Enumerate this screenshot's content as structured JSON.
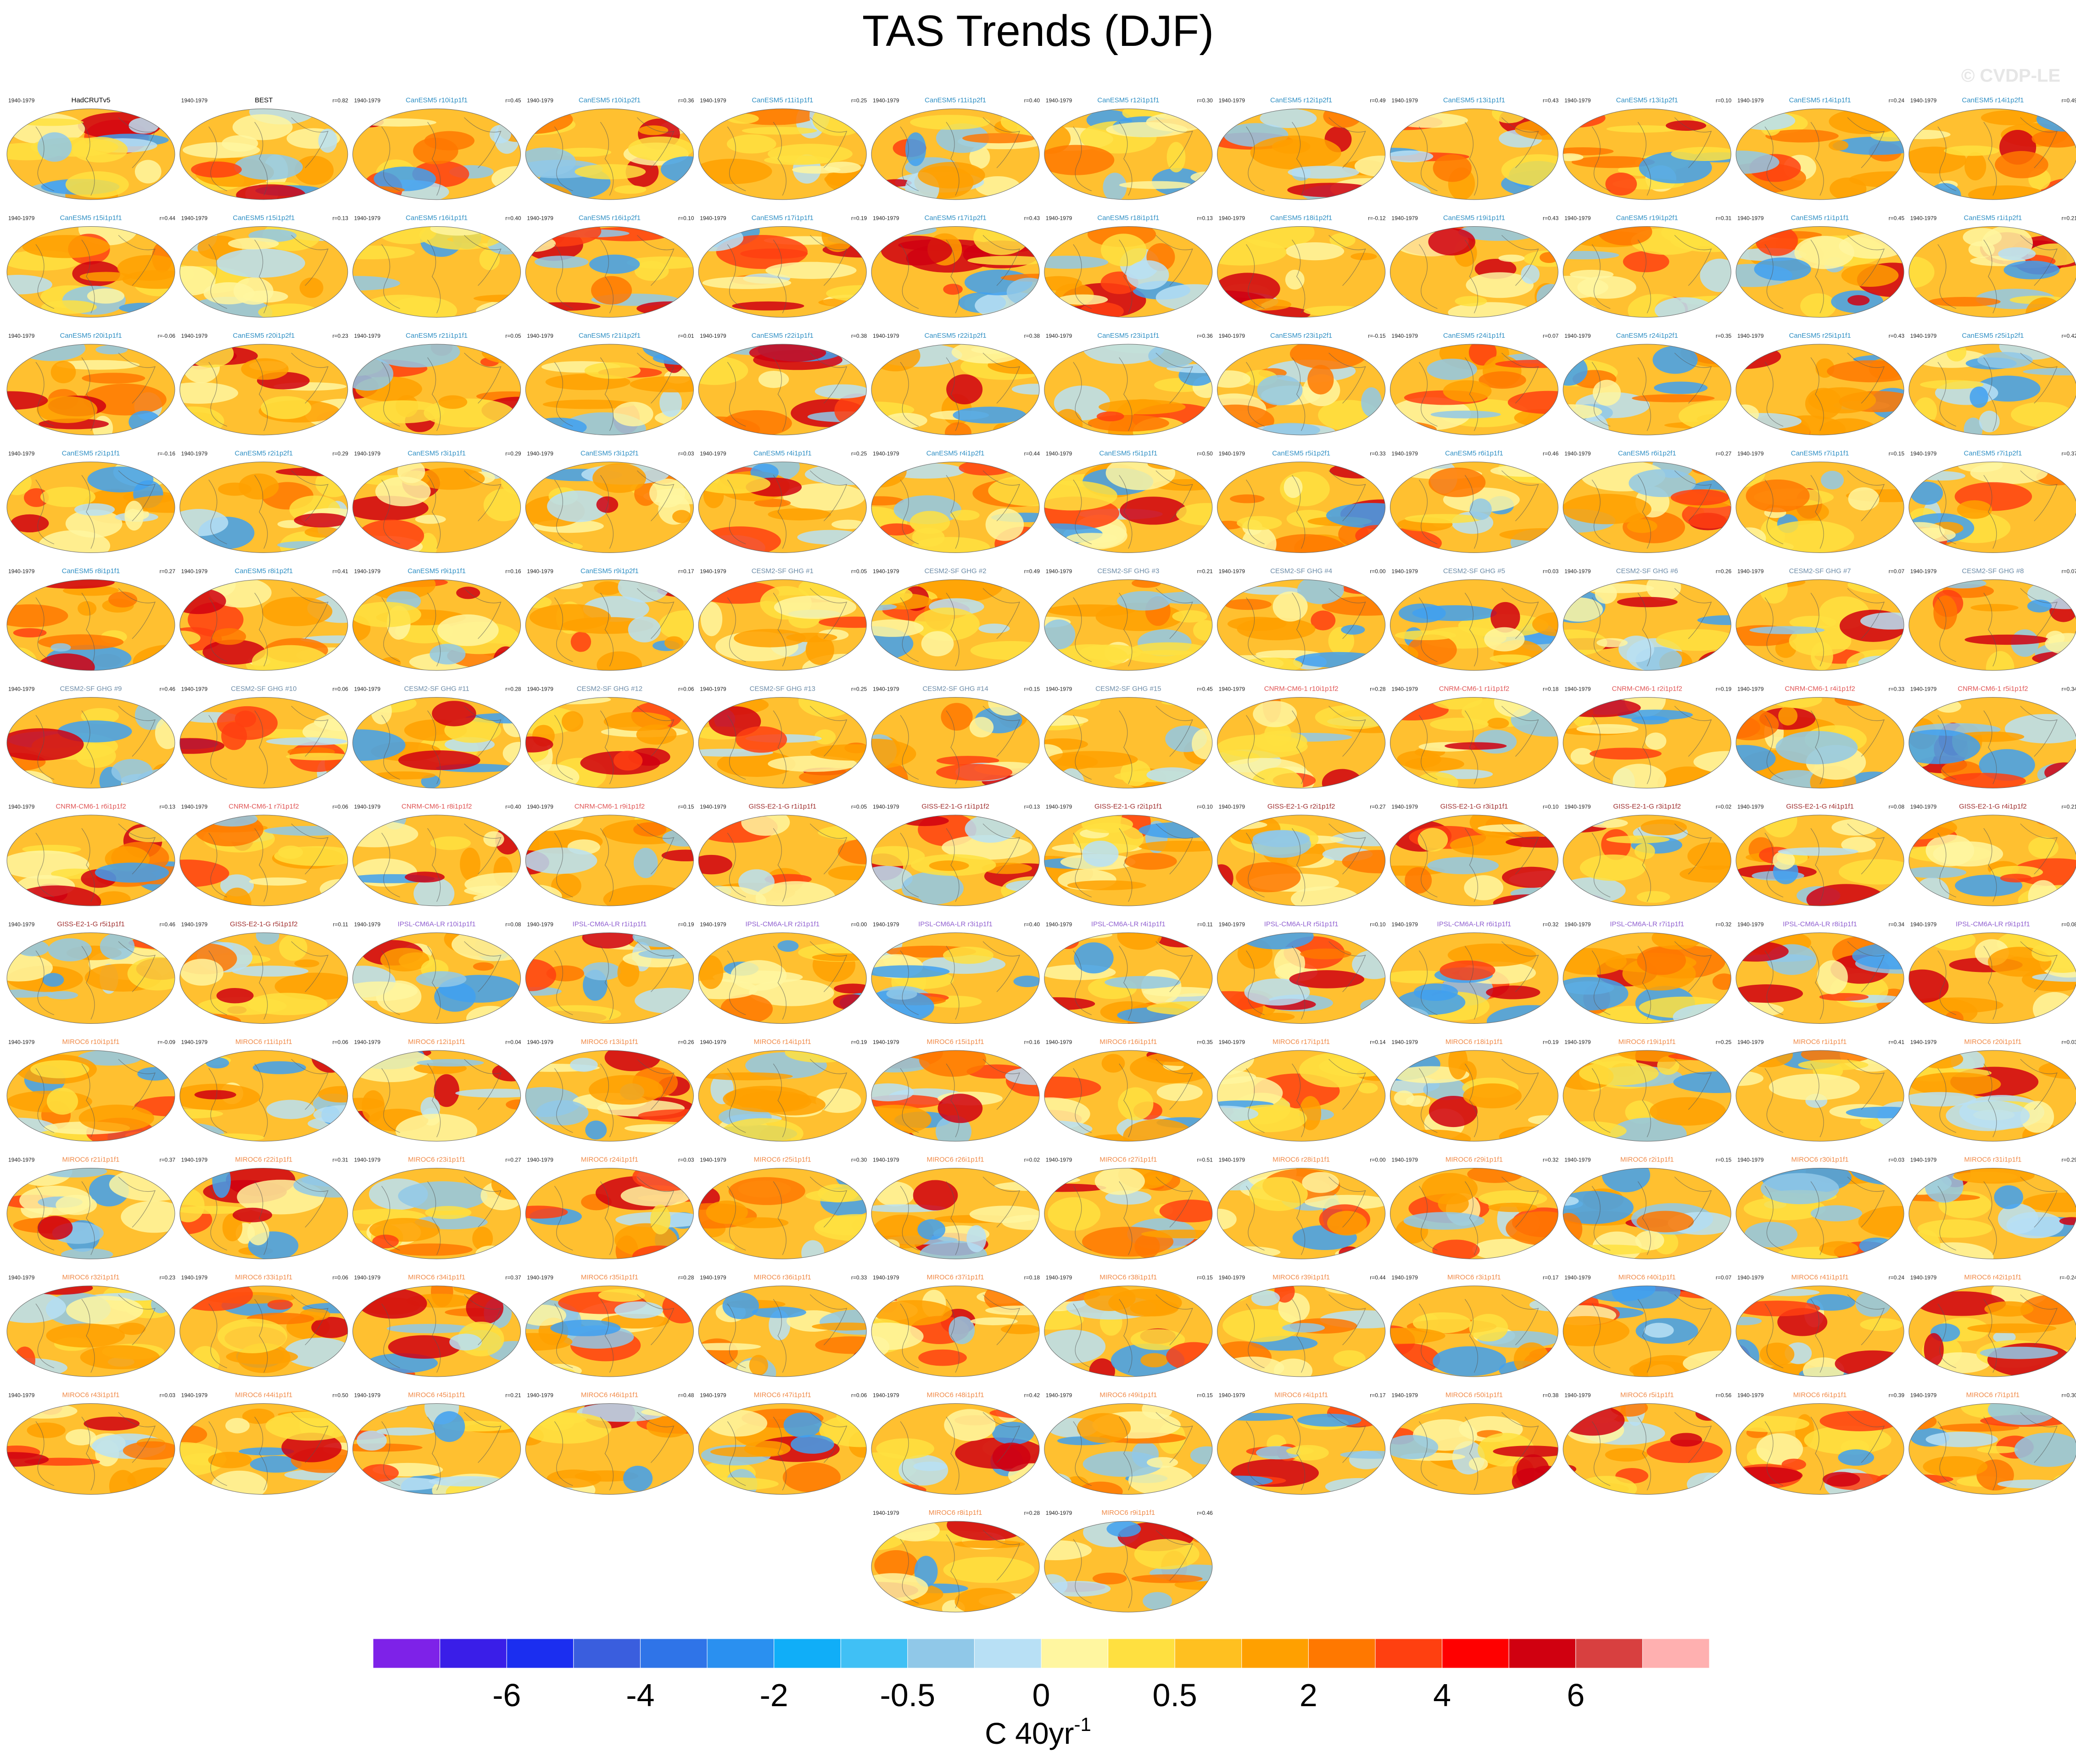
{
  "header": {
    "title": "TAS Trends (DJF)",
    "watermark": "© CVDP-LE"
  },
  "period": "1940-1979",
  "groups": [
    {
      "color": "#000000",
      "panels": [
        [
          "HadCRUTv5"
        ],
        [
          "BEST",
          "r=0.82"
        ]
      ]
    },
    {
      "color": "#2f8fc4",
      "panels": [
        [
          "CanESM5 r10i1p1f1",
          "r=0.45"
        ],
        [
          "CanESM5 r10i1p2f1",
          "r=0.36"
        ],
        [
          "CanESM5 r11i1p1f1",
          "r=0.25"
        ],
        [
          "CanESM5 r11i1p2f1",
          "r=0.40"
        ],
        [
          "CanESM5 r12i1p1f1",
          "r=0.30"
        ],
        [
          "CanESM5 r12i1p2f1",
          "r=0.49"
        ],
        [
          "CanESM5 r13i1p1f1",
          "r=0.43"
        ],
        [
          "CanESM5 r13i1p2f1",
          "r=0.10"
        ],
        [
          "CanESM5 r14i1p1f1",
          "r=0.24"
        ],
        [
          "CanESM5 r14i1p2f1",
          "r=0.49"
        ],
        [
          "CanESM5 r15i1p1f1",
          "r=0.44"
        ],
        [
          "CanESM5 r15i1p2f1",
          "r=0.13"
        ],
        [
          "CanESM5 r16i1p1f1",
          "r=0.40"
        ],
        [
          "CanESM5 r16i1p2f1",
          "r=0.10"
        ],
        [
          "CanESM5 r17i1p1f1",
          "r=0.19"
        ],
        [
          "CanESM5 r17i1p2f1",
          "r=0.43"
        ],
        [
          "CanESM5 r18i1p1f1",
          "r=0.13"
        ],
        [
          "CanESM5 r18i1p2f1",
          "r=-0.12"
        ],
        [
          "CanESM5 r19i1p1f1",
          "r=0.43"
        ],
        [
          "CanESM5 r19i1p2f1",
          "r=0.31"
        ],
        [
          "CanESM5 r1i1p1f1",
          "r=0.45"
        ],
        [
          "CanESM5 r1i1p2f1",
          "r=0.21"
        ],
        [
          "CanESM5 r20i1p1f1",
          "r=-0.06"
        ],
        [
          "CanESM5 r20i1p2f1",
          "r=0.23"
        ],
        [
          "CanESM5 r21i1p1f1",
          "r=0.05"
        ],
        [
          "CanESM5 r21i1p2f1",
          "r=0.01"
        ],
        [
          "CanESM5 r22i1p1f1",
          "r=0.38"
        ],
        [
          "CanESM5 r22i1p2f1",
          "r=0.38"
        ],
        [
          "CanESM5 r23i1p1f1",
          "r=0.36"
        ],
        [
          "CanESM5 r23i1p2f1",
          "r=-0.15"
        ],
        [
          "CanESM5 r24i1p1f1",
          "r=0.07"
        ],
        [
          "CanESM5 r24i1p2f1",
          "r=0.35"
        ],
        [
          "CanESM5 r25i1p1f1",
          "r=0.43"
        ],
        [
          "CanESM5 r25i1p2f1",
          "r=0.42"
        ],
        [
          "CanESM5 r2i1p1f1",
          "r=-0.16"
        ],
        [
          "CanESM5 r2i1p2f1",
          "r=0.29"
        ],
        [
          "CanESM5 r3i1p1f1",
          "r=0.29"
        ],
        [
          "CanESM5 r3i1p2f1",
          "r=0.03"
        ],
        [
          "CanESM5 r4i1p1f1",
          "r=0.25"
        ],
        [
          "CanESM5 r4i1p2f1",
          "r=0.44"
        ],
        [
          "CanESM5 r5i1p1f1",
          "r=0.50"
        ],
        [
          "CanESM5 r5i1p2f1",
          "r=0.33"
        ],
        [
          "CanESM5 r6i1p1f1",
          "r=0.46"
        ],
        [
          "CanESM5 r6i1p2f1",
          "r=0.27"
        ],
        [
          "CanESM5 r7i1p1f1",
          "r=0.15"
        ],
        [
          "CanESM5 r7i1p2f1",
          "r=0.37"
        ],
        [
          "CanESM5 r8i1p1f1",
          "r=0.27"
        ],
        [
          "CanESM5 r8i1p2f1",
          "r=0.41"
        ],
        [
          "CanESM5 r9i1p1f1",
          "r=0.16"
        ],
        [
          "CanESM5 r9i1p2f1",
          "r=0.17"
        ]
      ]
    },
    {
      "color": "#6d8ca8",
      "panels": [
        [
          "CESM2-SF GHG #1",
          "r=0.05"
        ],
        [
          "CESM2-SF GHG #2",
          "r=0.49"
        ],
        [
          "CESM2-SF GHG #3",
          "r=0.21"
        ],
        [
          "CESM2-SF GHG #4",
          "r=0.00"
        ],
        [
          "CESM2-SF GHG #5",
          "r=0.03"
        ],
        [
          "CESM2-SF GHG #6",
          "r=0.26"
        ],
        [
          "CESM2-SF GHG #7",
          "r=0.07"
        ],
        [
          "CESM2-SF GHG #8",
          "r=0.07"
        ],
        [
          "CESM2-SF GHG #9",
          "r=0.46"
        ],
        [
          "CESM2-SF GHG #10",
          "r=0.06"
        ],
        [
          "CESM2-SF GHG #11",
          "r=0.28"
        ],
        [
          "CESM2-SF GHG #12",
          "r=0.06"
        ],
        [
          "CESM2-SF GHG #13",
          "r=0.25"
        ],
        [
          "CESM2-SF GHG #14",
          "r=0.15"
        ],
        [
          "CESM2-SF GHG #15",
          "r=0.45"
        ]
      ]
    },
    {
      "color": "#e05555",
      "panels": [
        [
          "CNRM-CM6-1 r10i1p1f2",
          "r=0.28"
        ],
        [
          "CNRM-CM6-1 r1i1p1f2",
          "r=0.18"
        ],
        [
          "CNRM-CM6-1 r2i1p1f2",
          "r=0.19"
        ],
        [
          "CNRM-CM6-1 r4i1p1f2",
          "r=0.33"
        ],
        [
          "CNRM-CM6-1 r5i1p1f2",
          "r=0.34"
        ],
        [
          "CNRM-CM6-1 r6i1p1f2",
          "r=0.13"
        ],
        [
          "CNRM-CM6-1 r7i1p1f2",
          "r=0.06"
        ],
        [
          "CNRM-CM6-1 r8i1p1f2",
          "r=0.40"
        ],
        [
          "CNRM-CM6-1 r9i1p1f2",
          "r=0.15"
        ]
      ]
    },
    {
      "color": "#a03030",
      "panels": [
        [
          "GISS-E2-1-G r1i1p1f1",
          "r=0.05"
        ],
        [
          "GISS-E2-1-G r1i1p1f2",
          "r=0.13"
        ],
        [
          "GISS-E2-1-G r2i1p1f1",
          "r=0.10"
        ],
        [
          "GISS-E2-1-G r2i1p1f2",
          "r=0.27"
        ],
        [
          "GISS-E2-1-G r3i1p1f1",
          "r=0.10"
        ],
        [
          "GISS-E2-1-G r3i1p1f2",
          "r=0.02"
        ],
        [
          "GISS-E2-1-G r4i1p1f1",
          "r=0.08"
        ],
        [
          "GISS-E2-1-G r4i1p1f2",
          "r=0.21"
        ],
        [
          "GISS-E2-1-G r5i1p1f1",
          "r=0.46"
        ],
        [
          "GISS-E2-1-G r5i1p1f2",
          "r=0.11"
        ]
      ]
    },
    {
      "color": "#9060d0",
      "panels": [
        [
          "IPSL-CM6A-LR r10i1p1f1",
          "r=0.08"
        ],
        [
          "IPSL-CM6A-LR r1i1p1f1",
          "r=0.19"
        ],
        [
          "IPSL-CM6A-LR r2i1p1f1",
          "r=0.00"
        ],
        [
          "IPSL-CM6A-LR r3i1p1f1",
          "r=0.40"
        ],
        [
          "IPSL-CM6A-LR r4i1p1f1",
          "r=0.11"
        ],
        [
          "IPSL-CM6A-LR r5i1p1f1",
          "r=0.10"
        ],
        [
          "IPSL-CM6A-LR r6i1p1f1",
          "r=0.32"
        ],
        [
          "IPSL-CM6A-LR r7i1p1f1",
          "r=0.32"
        ],
        [
          "IPSL-CM6A-LR r8i1p1f1",
          "r=0.34"
        ],
        [
          "IPSL-CM6A-LR r9i1p1f1",
          "r=0.08"
        ]
      ]
    },
    {
      "color": "#f08a48",
      "panels": [
        [
          "MIROC6 r10i1p1f1",
          "r=-0.09"
        ],
        [
          "MIROC6 r11i1p1f1",
          "r=0.06"
        ],
        [
          "MIROC6 r12i1p1f1",
          "r=0.04"
        ],
        [
          "MIROC6 r13i1p1f1",
          "r=0.26"
        ],
        [
          "MIROC6 r14i1p1f1",
          "r=0.19"
        ],
        [
          "MIROC6 r15i1p1f1",
          "r=0.16"
        ],
        [
          "MIROC6 r16i1p1f1",
          "r=0.35"
        ],
        [
          "MIROC6 r17i1p1f1",
          "r=0.14"
        ],
        [
          "MIROC6 r18i1p1f1",
          "r=0.19"
        ],
        [
          "MIROC6 r19i1p1f1",
          "r=0.25"
        ],
        [
          "MIROC6 r1i1p1f1",
          "r=0.41"
        ],
        [
          "MIROC6 r20i1p1f1",
          "r=0.03"
        ],
        [
          "MIROC6 r21i1p1f1",
          "r=0.37"
        ],
        [
          "MIROC6 r22i1p1f1",
          "r=0.31"
        ],
        [
          "MIROC6 r23i1p1f1",
          "r=0.27"
        ],
        [
          "MIROC6 r24i1p1f1",
          "r=0.03"
        ],
        [
          "MIROC6 r25i1p1f1",
          "r=0.30"
        ],
        [
          "MIROC6 r26i1p1f1",
          "r=0.02"
        ],
        [
          "MIROC6 r27i1p1f1",
          "r=0.51"
        ],
        [
          "MIROC6 r28i1p1f1",
          "r=0.00"
        ],
        [
          "MIROC6 r29i1p1f1",
          "r=0.32"
        ],
        [
          "MIROC6 r2i1p1f1",
          "r=0.15"
        ],
        [
          "MIROC6 r30i1p1f1",
          "r=0.03"
        ],
        [
          "MIROC6 r31i1p1f1",
          "r=0.29"
        ],
        [
          "MIROC6 r32i1p1f1",
          "r=0.23"
        ],
        [
          "MIROC6 r33i1p1f1",
          "r=0.06"
        ],
        [
          "MIROC6 r34i1p1f1",
          "r=0.37"
        ],
        [
          "MIROC6 r35i1p1f1",
          "r=0.28"
        ],
        [
          "MIROC6 r36i1p1f1",
          "r=0.33"
        ],
        [
          "MIROC6 r37i1p1f1",
          "r=0.18"
        ],
        [
          "MIROC6 r38i1p1f1",
          "r=0.15"
        ],
        [
          "MIROC6 r39i1p1f1",
          "r=0.44"
        ],
        [
          "MIROC6 r3i1p1f1",
          "r=0.17"
        ],
        [
          "MIROC6 r40i1p1f1",
          "r=0.07"
        ],
        [
          "MIROC6 r41i1p1f1",
          "r=0.24"
        ],
        [
          "MIROC6 r42i1p1f1",
          "r=-0.24"
        ],
        [
          "MIROC6 r43i1p1f1",
          "r=0.03"
        ],
        [
          "MIROC6 r44i1p1f1",
          "r=0.50"
        ],
        [
          "MIROC6 r45i1p1f1",
          "r=0.21"
        ],
        [
          "MIROC6 r46i1p1f1",
          "r=0.48"
        ],
        [
          "MIROC6 r47i1p1f1",
          "r=0.06"
        ],
        [
          "MIROC6 r48i1p1f1",
          "r=0.42"
        ],
        [
          "MIROC6 r49i1p1f1",
          "r=0.15"
        ],
        [
          "MIROC6 r4i1p1f1",
          "r=0.17"
        ],
        [
          "MIROC6 r50i1p1f1",
          "r=0.38"
        ],
        [
          "MIROC6 r5i1p1f1",
          "r=0.56"
        ],
        [
          "MIROC6 r6i1p1f1",
          "r=0.39"
        ],
        [
          "MIROC6 r7i1p1f1",
          "r=0.30"
        ],
        [
          "MIROC6 r8i1p1f1",
          "r=0.28"
        ],
        [
          "MIROC6 r9i1p1f1",
          "r=0.46"
        ]
      ]
    }
  ],
  "colorbar": {
    "colors": [
      "#7e22e8",
      "#3a1ee8",
      "#1b2ef0",
      "#3a5ede",
      "#2f74e8",
      "#2a90f0",
      "#10aef8",
      "#40c0f5",
      "#90c8e8",
      "#b8e0f5",
      "#fff6a0",
      "#ffe040",
      "#ffc020",
      "#ffa000",
      "#ff7800",
      "#ff4010",
      "#ff0000",
      "#d00010",
      "#d84040",
      "#ffb0b0"
    ],
    "labels": [
      "-6",
      "-4",
      "-2",
      "-0.5",
      "0",
      "0.5",
      "2",
      "4",
      "6"
    ],
    "unit": "C 40yr",
    "unit_exponent": "-1"
  }
}
